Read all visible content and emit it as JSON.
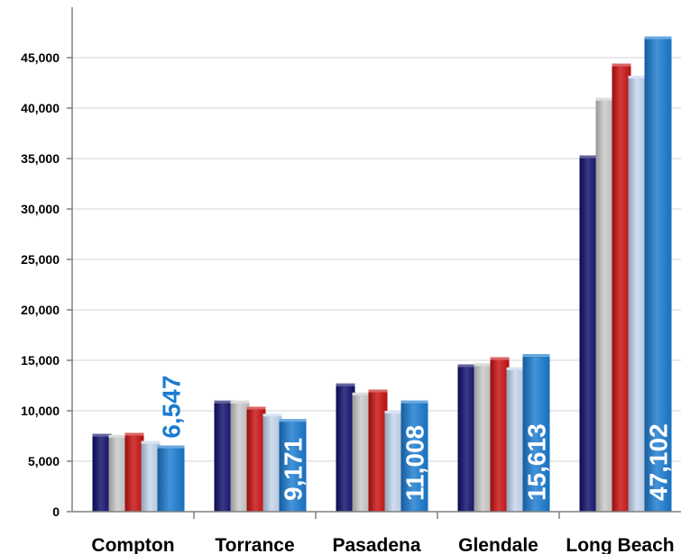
{
  "chart_data": {
    "type": "bar",
    "categories": [
      "Compton",
      "Torrance",
      "Pasadena",
      "Glendale",
      "Long Beach"
    ],
    "series": [
      {
        "values": [
          7700,
          11000,
          12700,
          14600,
          35300
        ],
        "color": "#0d0d6b"
      },
      {
        "values": [
          7600,
          11000,
          11800,
          14700,
          41000
        ],
        "color": "#c9c9c9"
      },
      {
        "values": [
          7800,
          10400,
          12100,
          15300,
          44400
        ],
        "color": "#c91010"
      },
      {
        "values": [
          7000,
          9700,
          10000,
          14300,
          43200
        ],
        "color": "#c4d6ee"
      },
      {
        "values": [
          6547,
          9171,
          11008,
          15613,
          47102
        ],
        "color": "#1a7bd1"
      }
    ],
    "data_labels": [
      "6,547",
      "9,171",
      "11,008",
      "15,613",
      "47,102"
    ],
    "data_label_color": "#1a7bd1",
    "yticks": [
      "0",
      "5,000",
      "10,000",
      "15,000",
      "20,000",
      "25,000",
      "30,000",
      "35,000",
      "40,000",
      "45,000"
    ],
    "ylim": [
      0,
      50000
    ],
    "grid": true,
    "legend": "none"
  }
}
